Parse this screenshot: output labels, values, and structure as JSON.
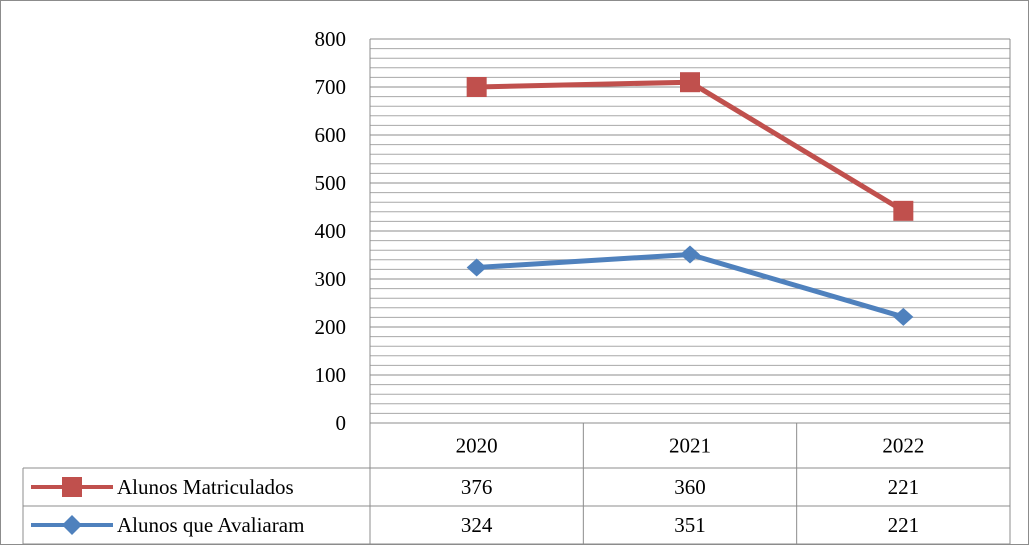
{
  "chart_data": {
    "type": "line",
    "title": "",
    "xlabel": "",
    "ylabel": "",
    "ylim": [
      0,
      800
    ],
    "yticks": [
      "0",
      "100",
      "200",
      "300",
      "400",
      "500",
      "600",
      "700",
      "800"
    ],
    "minor_gridlines": true,
    "categories": [
      "2020",
      "2021",
      "2022"
    ],
    "series": [
      {
        "name": "Alunos Matriculados",
        "color": "#c0504d",
        "marker": "square",
        "plotted": [
          700,
          710,
          442
        ],
        "table_values": [
          "376",
          "360",
          "221"
        ]
      },
      {
        "name": "Alunos que Avaliaram",
        "color": "#4f81bd",
        "marker": "diamond",
        "plotted": [
          324,
          351,
          221
        ],
        "table_values": [
          "324",
          "351",
          "221"
        ]
      }
    ],
    "legend": "data-table"
  }
}
